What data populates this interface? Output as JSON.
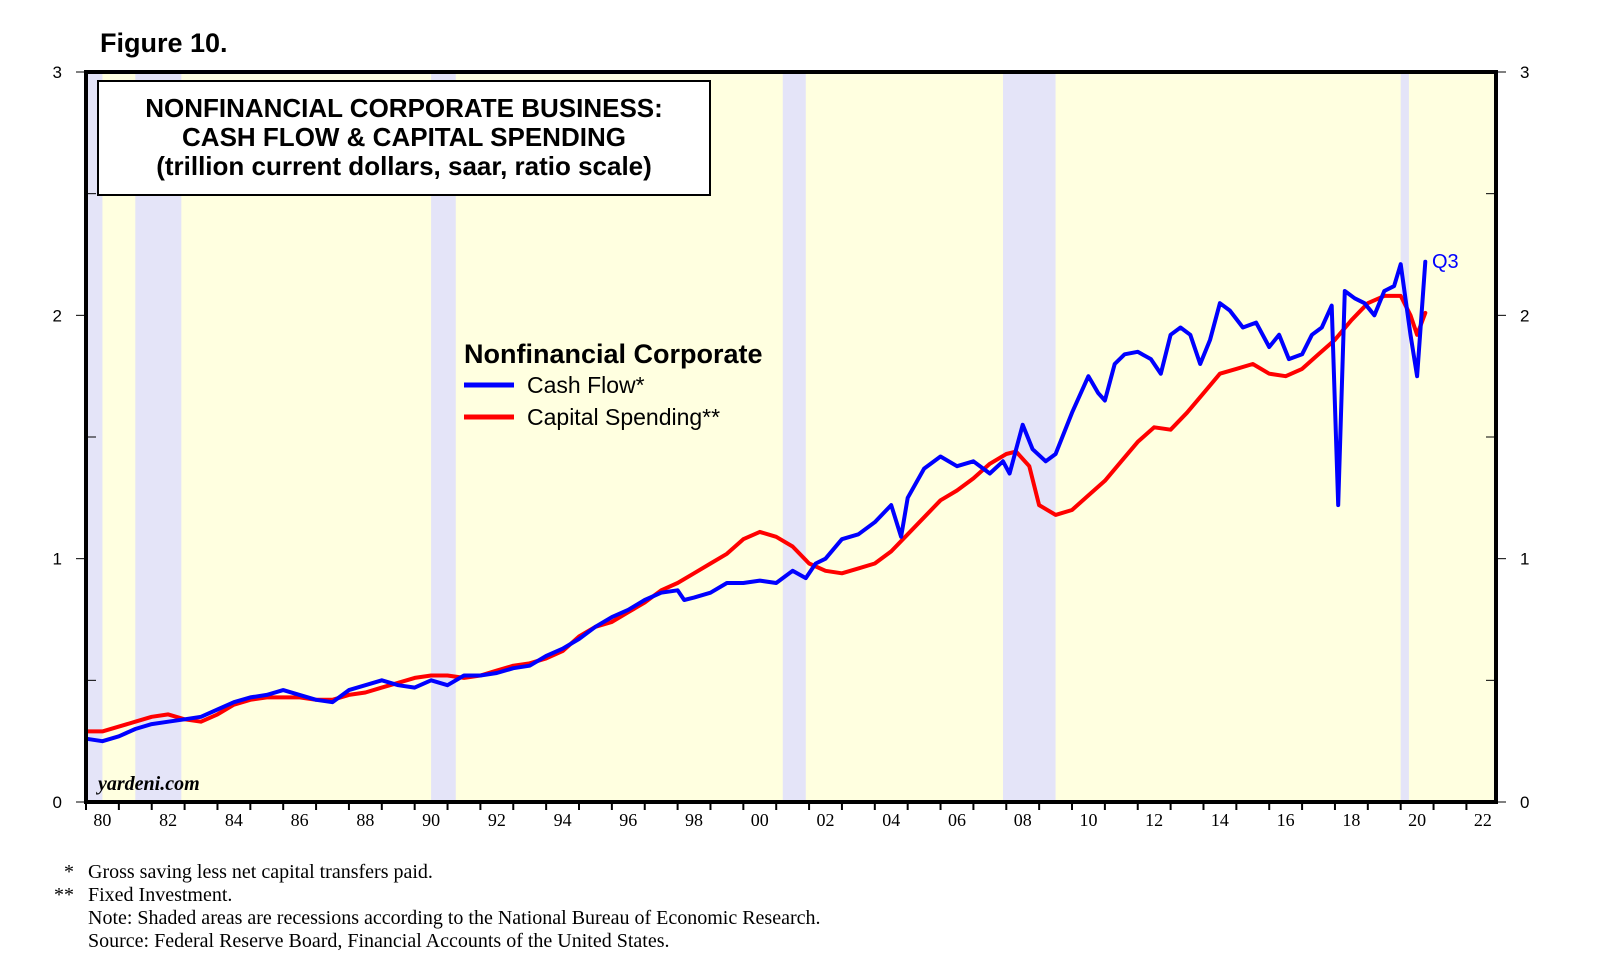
{
  "figure_label": "Figure 10.",
  "title_lines": [
    "NONFINANCIAL CORPORATE BUSINESS:",
    "CASH FLOW & CAPITAL SPENDING",
    "(trillion current dollars, saar, ratio scale)"
  ],
  "legend": {
    "title": "Nonfinancial Corporate",
    "items": [
      "Cash Flow*",
      "Capital Spending**"
    ]
  },
  "watermark": "yardeni.com",
  "end_label": "Q3",
  "footnotes": [
    {
      "marker": "*",
      "text": "Gross saving less net capital transfers paid."
    },
    {
      "marker": "**",
      "text": "Fixed Investment."
    },
    {
      "marker": "",
      "text": "Note: Shaded areas are recessions according to the National Bureau of Economic Research."
    },
    {
      "marker": "",
      "text": "Source: Federal Reserve Board, Financial Accounts of the United States."
    }
  ],
  "colors": {
    "cash_flow": "#0000ff",
    "capital_spending": "#ff0000",
    "plot_background": "#ffffe0",
    "recession": "#e4e4f8"
  },
  "chart_data": {
    "type": "line",
    "title": "NONFINANCIAL CORPORATE BUSINESS: CASH FLOW & CAPITAL SPENDING (trillion current dollars, saar, ratio scale)",
    "xlabel": "",
    "ylabel": "",
    "xlim": [
      1980,
      2022
    ],
    "ylim": [
      0,
      3
    ],
    "y_ticks": [
      0,
      1,
      2,
      3
    ],
    "y_tick_labels": [
      "0",
      "1",
      "2",
      "3"
    ],
    "x_ticks": [
      1980,
      1982,
      1984,
      1986,
      1988,
      1990,
      1992,
      1994,
      1996,
      1998,
      2000,
      2002,
      2004,
      2006,
      2008,
      2010,
      2012,
      2014,
      2016,
      2018,
      2020,
      2022
    ],
    "x_tick_labels": [
      "80",
      "82",
      "84",
      "86",
      "88",
      "90",
      "92",
      "94",
      "96",
      "98",
      "00",
      "02",
      "04",
      "06",
      "08",
      "10",
      "12",
      "14",
      "16",
      "18",
      "20",
      "22"
    ],
    "recessions": [
      [
        1980.0,
        1980.5
      ],
      [
        1981.5,
        1982.9
      ],
      [
        1990.5,
        1991.25
      ],
      [
        2001.2,
        2001.9
      ],
      [
        2007.9,
        2009.5
      ],
      [
        2020.0,
        2020.25
      ]
    ],
    "series": [
      {
        "name": "Cash Flow*",
        "points": [
          [
            1980.0,
            0.26
          ],
          [
            1980.5,
            0.25
          ],
          [
            1981.0,
            0.27
          ],
          [
            1981.5,
            0.3
          ],
          [
            1982.0,
            0.32
          ],
          [
            1982.5,
            0.33
          ],
          [
            1983.0,
            0.34
          ],
          [
            1983.5,
            0.35
          ],
          [
            1984.0,
            0.38
          ],
          [
            1984.5,
            0.41
          ],
          [
            1985.0,
            0.43
          ],
          [
            1985.5,
            0.44
          ],
          [
            1986.0,
            0.46
          ],
          [
            1986.5,
            0.44
          ],
          [
            1987.0,
            0.42
          ],
          [
            1987.5,
            0.41
          ],
          [
            1988.0,
            0.46
          ],
          [
            1988.5,
            0.48
          ],
          [
            1989.0,
            0.5
          ],
          [
            1989.5,
            0.48
          ],
          [
            1990.0,
            0.47
          ],
          [
            1990.5,
            0.5
          ],
          [
            1991.0,
            0.48
          ],
          [
            1991.5,
            0.52
          ],
          [
            1992.0,
            0.52
          ],
          [
            1992.5,
            0.53
          ],
          [
            1993.0,
            0.55
          ],
          [
            1993.5,
            0.56
          ],
          [
            1994.0,
            0.6
          ],
          [
            1994.5,
            0.63
          ],
          [
            1995.0,
            0.67
          ],
          [
            1995.5,
            0.72
          ],
          [
            1996.0,
            0.76
          ],
          [
            1996.5,
            0.79
          ],
          [
            1997.0,
            0.83
          ],
          [
            1997.5,
            0.86
          ],
          [
            1998.0,
            0.87
          ],
          [
            1998.2,
            0.83
          ],
          [
            1998.5,
            0.84
          ],
          [
            1999.0,
            0.86
          ],
          [
            1999.5,
            0.9
          ],
          [
            2000.0,
            0.9
          ],
          [
            2000.5,
            0.91
          ],
          [
            2001.0,
            0.9
          ],
          [
            2001.5,
            0.95
          ],
          [
            2001.9,
            0.92
          ],
          [
            2002.2,
            0.98
          ],
          [
            2002.5,
            1.0
          ],
          [
            2003.0,
            1.08
          ],
          [
            2003.5,
            1.1
          ],
          [
            2004.0,
            1.15
          ],
          [
            2004.5,
            1.22
          ],
          [
            2004.8,
            1.09
          ],
          [
            2005.0,
            1.25
          ],
          [
            2005.5,
            1.37
          ],
          [
            2006.0,
            1.42
          ],
          [
            2006.5,
            1.38
          ],
          [
            2007.0,
            1.4
          ],
          [
            2007.5,
            1.35
          ],
          [
            2007.9,
            1.4
          ],
          [
            2008.1,
            1.35
          ],
          [
            2008.5,
            1.55
          ],
          [
            2008.8,
            1.45
          ],
          [
            2009.2,
            1.4
          ],
          [
            2009.5,
            1.43
          ],
          [
            2010.0,
            1.6
          ],
          [
            2010.5,
            1.75
          ],
          [
            2010.8,
            1.68
          ],
          [
            2011.0,
            1.65
          ],
          [
            2011.3,
            1.8
          ],
          [
            2011.6,
            1.84
          ],
          [
            2012.0,
            1.85
          ],
          [
            2012.4,
            1.82
          ],
          [
            2012.7,
            1.76
          ],
          [
            2013.0,
            1.92
          ],
          [
            2013.3,
            1.95
          ],
          [
            2013.6,
            1.92
          ],
          [
            2013.9,
            1.8
          ],
          [
            2014.2,
            1.9
          ],
          [
            2014.5,
            2.05
          ],
          [
            2014.8,
            2.02
          ],
          [
            2015.2,
            1.95
          ],
          [
            2015.6,
            1.97
          ],
          [
            2016.0,
            1.87
          ],
          [
            2016.3,
            1.92
          ],
          [
            2016.6,
            1.82
          ],
          [
            2017.0,
            1.84
          ],
          [
            2017.3,
            1.92
          ],
          [
            2017.6,
            1.95
          ],
          [
            2017.9,
            2.04
          ],
          [
            2018.1,
            1.22
          ],
          [
            2018.3,
            2.1
          ],
          [
            2018.6,
            2.07
          ],
          [
            2018.9,
            2.05
          ],
          [
            2019.2,
            2.0
          ],
          [
            2019.5,
            2.1
          ],
          [
            2019.8,
            2.12
          ],
          [
            2020.0,
            2.21
          ],
          [
            2020.3,
            1.92
          ],
          [
            2020.5,
            1.75
          ],
          [
            2020.75,
            2.22
          ]
        ]
      },
      {
        "name": "Capital Spending**",
        "points": [
          [
            1980.0,
            0.29
          ],
          [
            1980.5,
            0.29
          ],
          [
            1981.0,
            0.31
          ],
          [
            1981.5,
            0.33
          ],
          [
            1982.0,
            0.35
          ],
          [
            1982.5,
            0.36
          ],
          [
            1983.0,
            0.34
          ],
          [
            1983.5,
            0.33
          ],
          [
            1984.0,
            0.36
          ],
          [
            1984.5,
            0.4
          ],
          [
            1985.0,
            0.42
          ],
          [
            1985.5,
            0.43
          ],
          [
            1986.0,
            0.43
          ],
          [
            1986.5,
            0.43
          ],
          [
            1987.0,
            0.42
          ],
          [
            1987.5,
            0.42
          ],
          [
            1988.0,
            0.44
          ],
          [
            1988.5,
            0.45
          ],
          [
            1989.0,
            0.47
          ],
          [
            1989.5,
            0.49
          ],
          [
            1990.0,
            0.51
          ],
          [
            1990.5,
            0.52
          ],
          [
            1991.0,
            0.52
          ],
          [
            1991.5,
            0.51
          ],
          [
            1992.0,
            0.52
          ],
          [
            1992.5,
            0.54
          ],
          [
            1993.0,
            0.56
          ],
          [
            1993.5,
            0.57
          ],
          [
            1994.0,
            0.59
          ],
          [
            1994.5,
            0.62
          ],
          [
            1995.0,
            0.68
          ],
          [
            1995.5,
            0.72
          ],
          [
            1996.0,
            0.74
          ],
          [
            1996.5,
            0.78
          ],
          [
            1997.0,
            0.82
          ],
          [
            1997.5,
            0.87
          ],
          [
            1998.0,
            0.9
          ],
          [
            1998.5,
            0.94
          ],
          [
            1999.0,
            0.98
          ],
          [
            1999.5,
            1.02
          ],
          [
            2000.0,
            1.08
          ],
          [
            2000.5,
            1.11
          ],
          [
            2001.0,
            1.09
          ],
          [
            2001.5,
            1.05
          ],
          [
            2002.0,
            0.98
          ],
          [
            2002.5,
            0.95
          ],
          [
            2003.0,
            0.94
          ],
          [
            2003.5,
            0.96
          ],
          [
            2004.0,
            0.98
          ],
          [
            2004.5,
            1.03
          ],
          [
            2005.0,
            1.1
          ],
          [
            2005.5,
            1.17
          ],
          [
            2006.0,
            1.24
          ],
          [
            2006.5,
            1.28
          ],
          [
            2007.0,
            1.33
          ],
          [
            2007.5,
            1.39
          ],
          [
            2008.0,
            1.43
          ],
          [
            2008.3,
            1.44
          ],
          [
            2008.7,
            1.38
          ],
          [
            2009.0,
            1.22
          ],
          [
            2009.5,
            1.18
          ],
          [
            2010.0,
            1.2
          ],
          [
            2010.5,
            1.26
          ],
          [
            2011.0,
            1.32
          ],
          [
            2011.5,
            1.4
          ],
          [
            2012.0,
            1.48
          ],
          [
            2012.5,
            1.54
          ],
          [
            2013.0,
            1.53
          ],
          [
            2013.5,
            1.6
          ],
          [
            2014.0,
            1.68
          ],
          [
            2014.5,
            1.76
          ],
          [
            2015.0,
            1.78
          ],
          [
            2015.5,
            1.8
          ],
          [
            2016.0,
            1.76
          ],
          [
            2016.5,
            1.75
          ],
          [
            2017.0,
            1.78
          ],
          [
            2017.5,
            1.84
          ],
          [
            2018.0,
            1.9
          ],
          [
            2018.5,
            1.98
          ],
          [
            2019.0,
            2.05
          ],
          [
            2019.5,
            2.08
          ],
          [
            2020.0,
            2.08
          ],
          [
            2020.3,
            2.0
          ],
          [
            2020.5,
            1.92
          ],
          [
            2020.75,
            2.01
          ]
        ]
      }
    ]
  }
}
